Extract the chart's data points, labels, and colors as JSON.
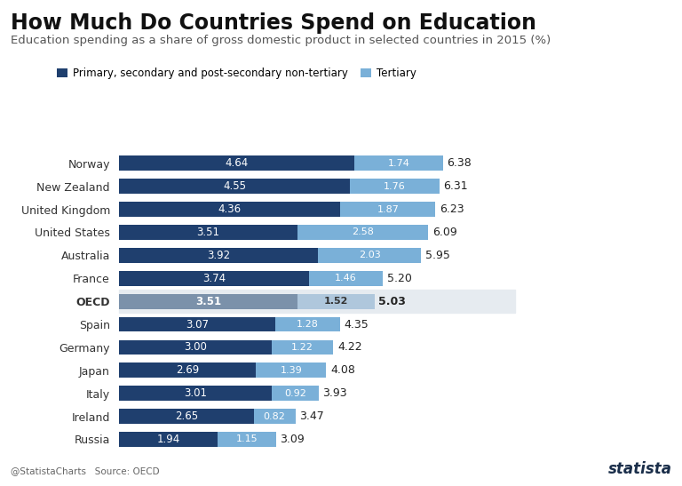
{
  "title": "How Much Do Countries Spend on Education",
  "subtitle": "Education spending as a share of gross domestic product in selected countries in 2015 (%)",
  "legend_primary": "Primary, secondary and post-secondary non-tertiary",
  "legend_tertiary": "Tertiary",
  "countries": [
    "Norway",
    "New Zealand",
    "United Kingdom",
    "United States",
    "Australia",
    "France",
    "OECD",
    "Spain",
    "Germany",
    "Japan",
    "Italy",
    "Ireland",
    "Russia"
  ],
  "primary_values": [
    4.64,
    4.55,
    4.36,
    3.51,
    3.92,
    3.74,
    3.51,
    3.07,
    3.0,
    2.69,
    3.01,
    2.65,
    1.94
  ],
  "tertiary_values": [
    1.74,
    1.76,
    1.87,
    2.58,
    2.03,
    1.46,
    1.52,
    1.28,
    1.22,
    1.39,
    0.92,
    0.82,
    1.15
  ],
  "total_values": [
    6.38,
    6.31,
    6.23,
    6.09,
    5.95,
    5.2,
    5.03,
    4.35,
    4.22,
    4.08,
    3.93,
    3.47,
    3.09
  ],
  "primary_color": "#1f3f6e",
  "tertiary_color": "#7ab0d8",
  "oecd_primary_color": "#7b91aa",
  "oecd_tertiary_color": "#afc7dc",
  "oecd_bg_color": "#e6ebf0",
  "background_color": "#ffffff",
  "bar_height": 0.65,
  "title_fontsize": 17,
  "subtitle_fontsize": 9.5,
  "label_fontsize": 9,
  "value_fontsize": 8.5,
  "total_fontsize": 9,
  "xlim_max": 7.8,
  "footer_left": "@StatistaCharts   Source: OECD",
  "statista_text": "statista"
}
